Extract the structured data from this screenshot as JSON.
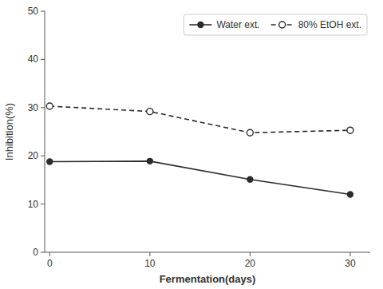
{
  "chart_data": {
    "type": "line",
    "x": [
      0,
      10,
      20,
      30
    ],
    "series": [
      {
        "name": "Water ext.",
        "color": "#2b2b2b",
        "values": [
          18.8,
          18.9,
          15.1,
          12.0
        ],
        "line_style": "solid",
        "marker": "circle"
      },
      {
        "name": "80% EtOH ext.",
        "color": "#2b2b2b",
        "values": [
          30.3,
          29.2,
          24.8,
          25.3
        ],
        "line_style": "dashed",
        "marker": "open-circle"
      }
    ],
    "xlabel": "Fermentation(days)",
    "ylabel": "Inhibition(%)",
    "xlim": [
      -0.5,
      32
    ],
    "ylim": [
      0,
      50
    ],
    "xticks": [
      0,
      10,
      20,
      30
    ],
    "yticks": [
      0,
      10,
      20,
      30,
      40,
      50
    ],
    "grid": false,
    "legend": "upper right"
  }
}
